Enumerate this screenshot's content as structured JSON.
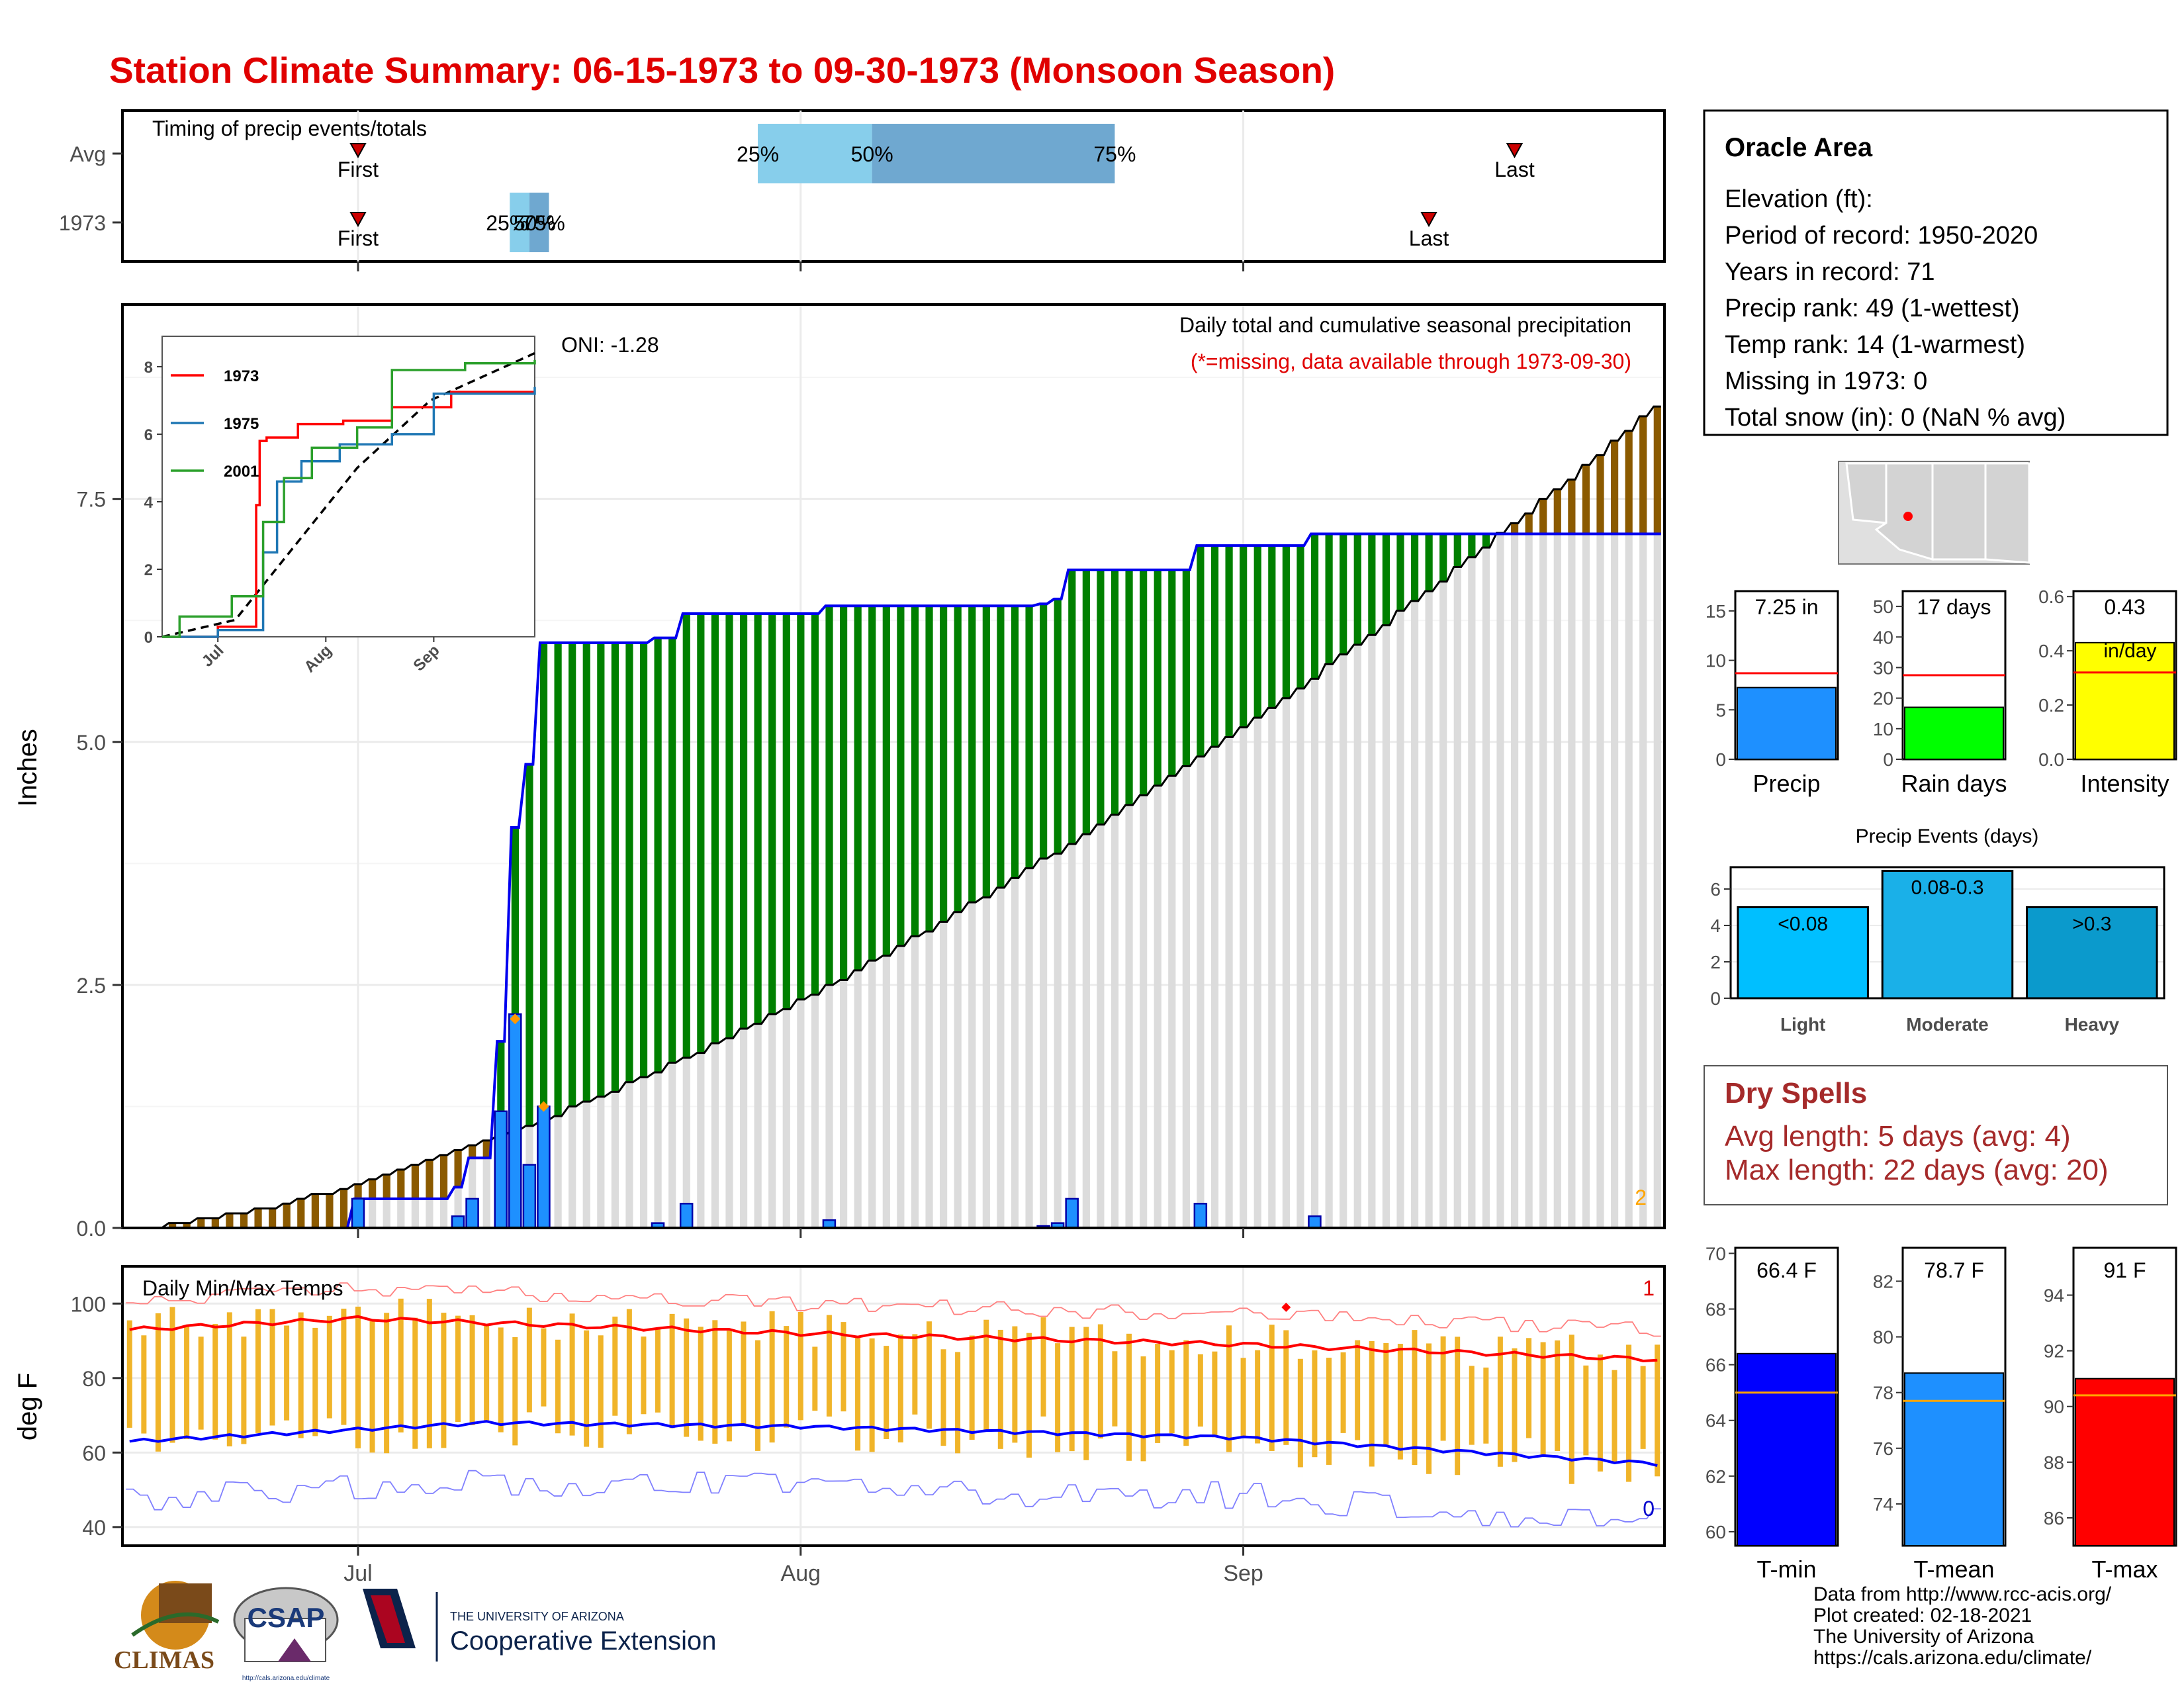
{
  "title": "Station Climate Summary: 06-15-1973 to 09-30-1973 (Monsoon Season)",
  "colors": {
    "title": "#e00000",
    "precip_bar": "#1e90ff",
    "above_fill": "#008000",
    "below_fill": "#8b5a00",
    "normal_fill": "#dcdcdc",
    "cum_line": "#0000ee",
    "temp_bar": "#f0b429",
    "max_line": "#ff0000",
    "min_line": "#0000ff",
    "dry_spells": "#a52a2a",
    "tmin_bar": "#0000ff",
    "tmean_bar": "#1e90ff",
    "tmax_bar": "#ff0000",
    "rain_days_bar": "#00ff00",
    "intensity_bar": "#ffff00"
  },
  "timing": {
    "title": "Timing of precip events/totals",
    "rows": [
      "Avg",
      "1973"
    ],
    "first_label": "First",
    "last_label": "Last",
    "pct_labels": [
      "25%",
      "50%",
      "75%"
    ],
    "avg": {
      "first": "1973-07-01",
      "p25": "1973-07-29",
      "p50": "1973-08-06",
      "p75": "1973-08-23",
      "last": "1973-09-20"
    },
    "yr": {
      "first": "1973-07-01",
      "p25": "1973-07-12",
      "p50": "1973-07-13",
      "p75": "1973-07-13",
      "p75_end": "1973-07-14",
      "last": "1973-09-14"
    }
  },
  "main": {
    "header": "Daily total and cumulative seasonal precipitation",
    "missing_note": "(*=missing, data available through 1973-09-30)",
    "oni": "ONI: -1.28",
    "ylabel": "Inches",
    "corner_count": "2",
    "yticks": [
      "0.0",
      "2.5",
      "5.0",
      "7.5"
    ],
    "ylim": [
      0,
      9.5
    ],
    "xticks": [
      "Jul",
      "Aug",
      "Sep"
    ],
    "start_date": "1973-06-15",
    "end_date": "1973-09-30",
    "daily_precip": [
      {
        "date": "1973-07-01",
        "value": 0.3
      },
      {
        "date": "1973-07-08",
        "value": 0.12
      },
      {
        "date": "1973-07-09",
        "value": 0.3
      },
      {
        "date": "1973-07-11",
        "value": 1.2
      },
      {
        "date": "1973-07-12",
        "value": 2.2
      },
      {
        "date": "1973-07-13",
        "value": 0.65
      },
      {
        "date": "1973-07-14",
        "value": 1.25
      },
      {
        "date": "1973-07-22",
        "value": 0.05
      },
      {
        "date": "1973-07-24",
        "value": 0.25
      },
      {
        "date": "1973-08-03",
        "value": 0.08
      },
      {
        "date": "1973-08-18",
        "value": 0.02
      },
      {
        "date": "1973-08-19",
        "value": 0.05
      },
      {
        "date": "1973-08-20",
        "value": 0.3
      },
      {
        "date": "1973-08-29",
        "value": 0.25
      },
      {
        "date": "1973-09-06",
        "value": 0.12
      }
    ],
    "normal_cumulative_endpoints": [
      {
        "date": "1973-06-15",
        "value": 0
      },
      {
        "date": "1973-09-30",
        "value": 8.45
      }
    ],
    "orange_markers": [
      {
        "date": "1973-07-12",
        "value": 2.15
      },
      {
        "date": "1973-07-14",
        "value": 1.25
      }
    ]
  },
  "inset": {
    "legend": [
      "1973",
      "1975",
      "2001"
    ],
    "yticks": [
      "0",
      "2",
      "4",
      "6",
      "8"
    ],
    "xticks": [
      "Jul",
      "Aug",
      "Sep"
    ],
    "series": [
      {
        "name": "1973",
        "color": "#ff0000",
        "points": [
          {
            "x": "1973-06-15",
            "y": 0
          },
          {
            "x": "1973-07-01",
            "y": 0.3
          },
          {
            "x": "1973-07-12",
            "y": 3.9
          },
          {
            "x": "1973-07-13",
            "y": 5.8
          },
          {
            "x": "1973-07-15",
            "y": 5.9
          },
          {
            "x": "1973-07-24",
            "y": 6.3
          },
          {
            "x": "1973-08-06",
            "y": 6.4
          },
          {
            "x": "1973-08-20",
            "y": 6.8
          },
          {
            "x": "1973-09-06",
            "y": 7.25
          },
          {
            "x": "1973-09-30",
            "y": 7.25
          }
        ]
      },
      {
        "name": "1975",
        "color": "#1f77b4",
        "points": [
          {
            "x": "1973-06-15",
            "y": 0
          },
          {
            "x": "1973-07-01",
            "y": 0.2
          },
          {
            "x": "1973-07-14",
            "y": 2.5
          },
          {
            "x": "1973-07-18",
            "y": 4.6
          },
          {
            "x": "1973-07-25",
            "y": 5.2
          },
          {
            "x": "1973-08-05",
            "y": 5.7
          },
          {
            "x": "1973-08-20",
            "y": 6.0
          },
          {
            "x": "1973-09-01",
            "y": 7.2
          },
          {
            "x": "1973-09-30",
            "y": 7.4
          }
        ]
      },
      {
        "name": "2001",
        "color": "#2ca02c",
        "points": [
          {
            "x": "1973-06-15",
            "y": 0
          },
          {
            "x": "1973-06-20",
            "y": 0.6
          },
          {
            "x": "1973-07-05",
            "y": 1.2
          },
          {
            "x": "1973-07-14",
            "y": 3.4
          },
          {
            "x": "1973-07-20",
            "y": 4.7
          },
          {
            "x": "1973-07-28",
            "y": 5.6
          },
          {
            "x": "1973-08-10",
            "y": 6.2
          },
          {
            "x": "1973-08-20",
            "y": 7.9
          },
          {
            "x": "1973-09-10",
            "y": 8.1
          },
          {
            "x": "1973-09-30",
            "y": 8.2
          }
        ]
      }
    ],
    "avg_line": {
      "name": "avg",
      "color": "#000000",
      "points": [
        {
          "x": "1973-06-15",
          "y": 0
        },
        {
          "x": "1973-07-06",
          "y": 0.5
        },
        {
          "x": "1973-07-20",
          "y": 2.3
        },
        {
          "x": "1973-08-10",
          "y": 5.0
        },
        {
          "x": "1973-08-31",
          "y": 7.0
        },
        {
          "x": "1973-09-30",
          "y": 8.4
        }
      ]
    }
  },
  "info": {
    "station": "Oracle Area",
    "lines": [
      "Elevation (ft):",
      "Period of record: 1950-2020",
      "Years in record: 71",
      "Precip rank: 49 (1-wettest)",
      "Temp rank: 14 (1-warmest)",
      "Missing in 1973: 0",
      "Total snow (in): 0 (NaN % avg)"
    ]
  },
  "summary_bars": [
    {
      "name": "Precip",
      "value": 7.25,
      "label": "7.25 in",
      "avg": 8.7,
      "ylim": [
        0,
        17
      ],
      "yticks": [
        "0",
        "5",
        "10",
        "15"
      ],
      "ytick_vals": [
        0,
        5,
        10,
        15
      ],
      "color": "#1e90ff"
    },
    {
      "name": "Rain days",
      "value": 17,
      "label": "17 days",
      "avg": 27.5,
      "ylim": [
        0,
        55
      ],
      "yticks": [
        "0",
        "10",
        "20",
        "30",
        "40",
        "50"
      ],
      "ytick_vals": [
        0,
        10,
        20,
        30,
        40,
        50
      ],
      "color": "#00ff00"
    },
    {
      "name": "Intensity",
      "value": 0.43,
      "label": "0.43",
      "label2": "in/day",
      "avg": 0.32,
      "ylim": [
        0,
        0.62
      ],
      "yticks": [
        "0.0",
        "0.2",
        "0.4",
        "0.6"
      ],
      "ytick_vals": [
        0,
        0.2,
        0.4,
        0.6
      ],
      "color": "#ffff00"
    }
  ],
  "precip_events": {
    "title": "Precip Events (days)",
    "categories": [
      "Light",
      "Moderate",
      "Heavy"
    ],
    "values": [
      5,
      7,
      5
    ],
    "labels": [
      "<0.08",
      "0.08-0.3",
      ">0.3"
    ],
    "colors": [
      "#00bfff",
      "#1ab0e8",
      "#0b9acc"
    ],
    "ylim": [
      0,
      7.2
    ],
    "yticks": [
      "0",
      "2",
      "4",
      "6"
    ]
  },
  "dry_spells": {
    "title": "Dry Spells",
    "avg_length": "Avg length: 5 days (avg: 4)",
    "max_length": "Max length: 22 days (avg: 20)"
  },
  "temps": {
    "title": "Daily Min/Max Temps",
    "ylabel": "deg F",
    "yticks": [
      "40",
      "60",
      "80",
      "100"
    ],
    "ylim": [
      35,
      110
    ],
    "count_above": "1",
    "count_below": "0",
    "avg_max_endpoints": [
      {
        "date": "1973-06-15",
        "value": 93
      },
      {
        "date": "1973-07-01",
        "value": 96
      },
      {
        "date": "1973-08-01",
        "value": 92
      },
      {
        "date": "1973-09-01",
        "value": 89
      },
      {
        "date": "1973-09-30",
        "value": 85
      }
    ],
    "avg_min_endpoints": [
      {
        "date": "1973-06-15",
        "value": 63
      },
      {
        "date": "1973-07-10",
        "value": 68
      },
      {
        "date": "1973-08-01",
        "value": 67
      },
      {
        "date": "1973-09-01",
        "value": 64
      },
      {
        "date": "1973-09-30",
        "value": 57
      }
    ]
  },
  "temp_summary": [
    {
      "name": "T-min",
      "label": "66.4 F",
      "value": 66.4,
      "avg": 65.0,
      "ylim": [
        59.5,
        70.2
      ],
      "yticks": [
        "60",
        "62",
        "64",
        "66",
        "68",
        "70"
      ],
      "ytick_vals": [
        60,
        62,
        64,
        66,
        68,
        70
      ],
      "color": "#0000ff"
    },
    {
      "name": "T-mean",
      "label": "78.7 F",
      "value": 78.7,
      "avg": 77.7,
      "ylim": [
        72.5,
        83.2
      ],
      "yticks": [
        "74",
        "76",
        "78",
        "80",
        "82"
      ],
      "ytick_vals": [
        74,
        76,
        78,
        80,
        82
      ],
      "color": "#1e90ff"
    },
    {
      "name": "T-max",
      "label": "91 F",
      "value": 91.0,
      "avg": 90.4,
      "ylim": [
        85.0,
        95.7
      ],
      "yticks": [
        "86",
        "88",
        "90",
        "92",
        "94"
      ],
      "ytick_vals": [
        86,
        88,
        90,
        92,
        94
      ],
      "color": "#ff0000"
    }
  ],
  "credits": [
    "Data from http://www.rcc-acis.org/",
    "Plot created: 02-18-2021",
    "The University of Arizona",
    "https://cals.arizona.edu/climate/"
  ],
  "logos": {
    "climas": "CLIMAS",
    "csap": "CSAP",
    "csap_url": "http://cals.arizona.edu/climate",
    "ua_small": "THE UNIVERSITY OF ARIZONA",
    "ua_big": "Cooperative Extension"
  }
}
